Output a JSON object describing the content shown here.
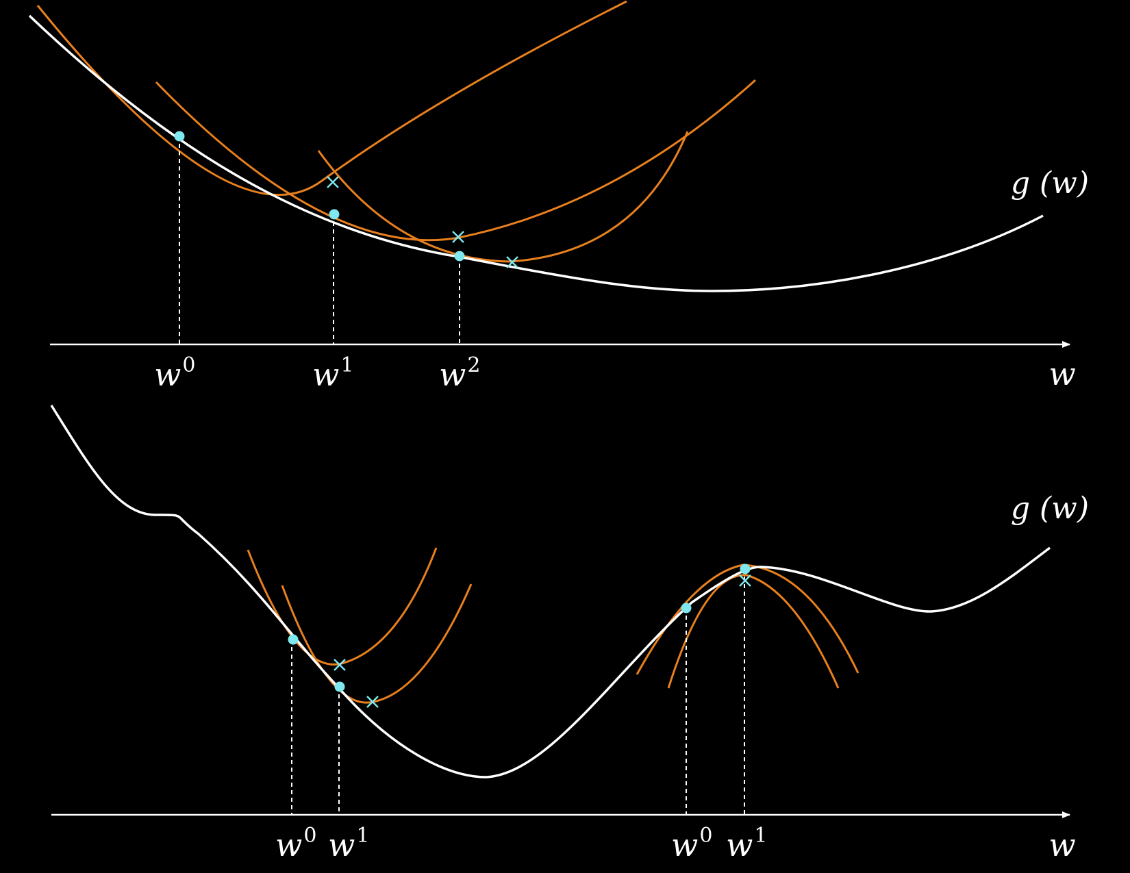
{
  "colors": {
    "background": "#000000",
    "function_curve": "#ffffff",
    "quadratic_approximations": "#e8801e",
    "iterate_points": "#7ee8ee",
    "axis": "#ffffff"
  },
  "panels": [
    {
      "id": "top",
      "axis_label": "w",
      "function_label": "g (w)",
      "iterates": [
        {
          "base": "w",
          "sup": "0"
        },
        {
          "base": "w",
          "sup": "1"
        },
        {
          "base": "w",
          "sup": "2"
        }
      ]
    },
    {
      "id": "bottom",
      "axis_label": "w",
      "function_label": "g (w)",
      "iterates": [
        {
          "base": "w",
          "sup": "0"
        },
        {
          "base": "w",
          "sup": "1"
        },
        {
          "base": "w",
          "sup": "0"
        },
        {
          "base": "w",
          "sup": "1"
        }
      ]
    }
  ]
}
